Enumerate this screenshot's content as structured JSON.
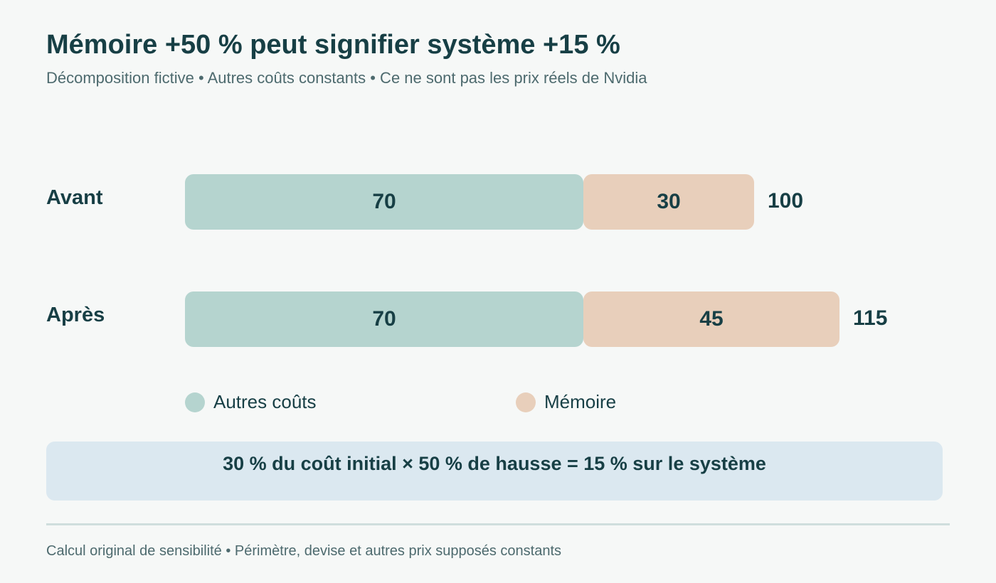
{
  "title": "Mémoire +50 % peut signifier système +15 %",
  "subtitle": "Décomposition fictive • Autres coûts constants • Ce ne sont pas les prix réels de Nvidia",
  "colors": {
    "other": "#b5d4cf",
    "memory": "#e8cfbb",
    "text": "#173f45",
    "callout_bg": "#dbe8f0"
  },
  "chart_data": {
    "type": "bar",
    "orientation": "horizontal",
    "stacked": true,
    "categories": [
      "Avant",
      "Après"
    ],
    "series": [
      {
        "name": "Autres coûts",
        "values": [
          70,
          70
        ]
      },
      {
        "name": "Mémoire",
        "values": [
          30,
          45
        ]
      }
    ],
    "totals": [
      "100",
      "115"
    ],
    "segment_labels": [
      [
        "70",
        "30"
      ],
      [
        "70",
        "45"
      ]
    ],
    "xlim": [
      0,
      130
    ],
    "grid": false,
    "legend": "bottom"
  },
  "callout": "30 % du coût initial × 50 % de hausse = 15 % sur le système",
  "footer": "Calcul original de sensibilité • Périmètre, devise et autres prix supposés constants"
}
